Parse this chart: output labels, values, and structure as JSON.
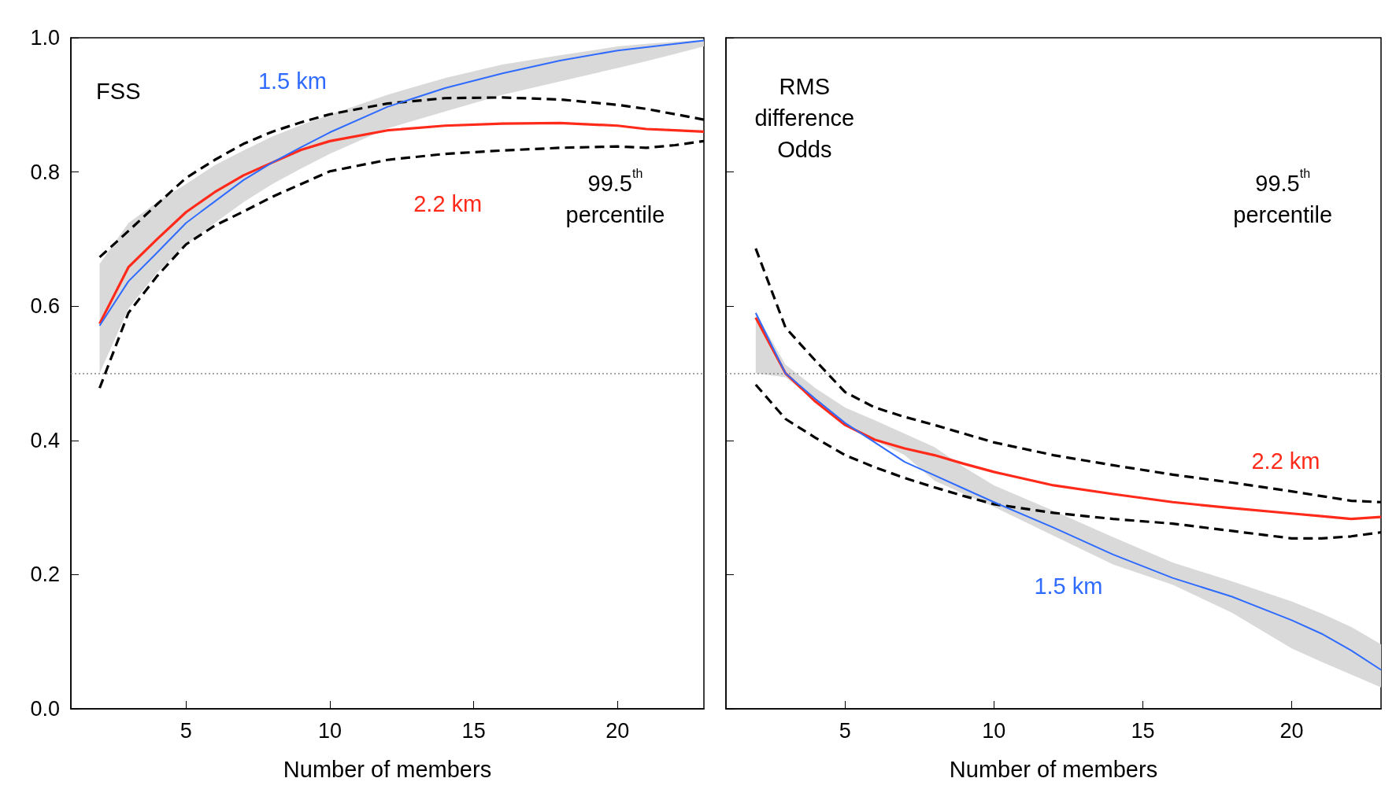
{
  "chart_data": [
    {
      "type": "line",
      "xlabel": "Number of members",
      "annotations": [
        "FSS",
        "99.5$^{th}$\npercentile"
      ],
      "xlim": [
        1,
        23
      ],
      "xticks": [
        5,
        10,
        15,
        20
      ],
      "ylim": [
        0,
        1
      ],
      "yticks": [
        {
          "value": 0,
          "label": "0.0"
        },
        {
          "value": 0.2,
          "label": "0.2"
        },
        {
          "value": 0.4,
          "label": "0.4"
        },
        {
          "value": 0.6,
          "label": "0.6"
        },
        {
          "value": 0.8,
          "label": "0.8"
        },
        {
          "value": 1,
          "label": "1.0"
        }
      ],
      "grid": false,
      "legend": false,
      "x": [
        2,
        3,
        4,
        5,
        6,
        7,
        8,
        9,
        10,
        12,
        14,
        16,
        18,
        20,
        21,
        22,
        23
      ],
      "ref_lines": [
        {
          "axis": "y",
          "value": 0.5,
          "color": "#888888",
          "line_style": "dotted"
        }
      ],
      "series": [
        {
          "name": "1.5 km",
          "color": "#2f6bff",
          "values": [
            0.571,
            0.637,
            0.68,
            0.724,
            0.756,
            0.788,
            0.814,
            0.837,
            0.859,
            0.897,
            0.925,
            0.947,
            0.966,
            0.981,
            0.986,
            0.991,
            0.996
          ],
          "lower": [
            0.5,
            0.596,
            0.65,
            0.692,
            0.724,
            0.755,
            0.782,
            0.805,
            0.827,
            0.865,
            0.89,
            0.915,
            0.935,
            0.955,
            0.965,
            0.976,
            0.987
          ],
          "upper": [
            0.663,
            0.724,
            0.755,
            0.782,
            0.81,
            0.832,
            0.853,
            0.87,
            0.885,
            0.915,
            0.94,
            0.96,
            0.974,
            0.987,
            0.991,
            0.994,
            0.997
          ]
        },
        {
          "name": "2.2 km",
          "color": "#ff2a1a",
          "values": [
            0.574,
            0.658,
            0.7,
            0.74,
            0.77,
            0.795,
            0.814,
            0.833,
            0.846,
            0.862,
            0.869,
            0.872,
            0.873,
            0.869,
            0.864,
            0.862,
            0.86
          ]
        },
        {
          "color": "#000000",
          "line_style": "dashed",
          "values": [
            0.673,
            0.712,
            0.752,
            0.791,
            0.818,
            0.842,
            0.86,
            0.874,
            0.886,
            0.902,
            0.91,
            0.911,
            0.908,
            0.9,
            0.894,
            0.886,
            0.878
          ]
        },
        {
          "color": "#000000",
          "line_style": "dashed",
          "values": [
            0.478,
            0.59,
            0.645,
            0.692,
            0.72,
            0.741,
            0.763,
            0.782,
            0.801,
            0.818,
            0.827,
            0.832,
            0.836,
            0.838,
            0.836,
            0.84,
            0.846
          ]
        }
      ]
    },
    {
      "type": "line",
      "xlabel": "Number of members",
      "annotations": [
        "RMS\ndifference\nOdds",
        "99.5$^{th}$\npercentile"
      ],
      "xlim": [
        1,
        23
      ],
      "xticks": [
        5,
        10,
        15,
        20
      ],
      "ylim": [
        0,
        1
      ],
      "yticks": [
        0,
        0.2,
        0.4,
        0.6,
        0.8,
        1
      ],
      "tick_labels": "x",
      "grid": false,
      "legend": false,
      "x": [
        2,
        3,
        4,
        5,
        6,
        7,
        8,
        9,
        10,
        12,
        14,
        16,
        18,
        20,
        21,
        22,
        23
      ],
      "ref_lines": [
        {
          "axis": "y",
          "value": 0.5,
          "color": "#888888",
          "line_style": "dotted"
        }
      ],
      "series": [
        {
          "name": "1.5 km",
          "color": "#2f6bff",
          "values": [
            0.59,
            0.5,
            0.462,
            0.426,
            0.397,
            0.368,
            0.348,
            0.328,
            0.308,
            0.27,
            0.23,
            0.195,
            0.167,
            0.132,
            0.112,
            0.087,
            0.058
          ],
          "lower": [
            0.5,
            0.494,
            0.46,
            0.423,
            0.4,
            0.378,
            0.34,
            0.32,
            0.301,
            0.258,
            0.215,
            0.185,
            0.143,
            0.09,
            0.07,
            0.051,
            0.032
          ],
          "upper": [
            0.59,
            0.513,
            0.478,
            0.449,
            0.43,
            0.41,
            0.39,
            0.36,
            0.333,
            0.295,
            0.256,
            0.218,
            0.19,
            0.16,
            0.142,
            0.122,
            0.096
          ]
        },
        {
          "name": "2.2 km",
          "color": "#ff2a1a",
          "values": [
            0.583,
            0.5,
            0.458,
            0.423,
            0.401,
            0.388,
            0.378,
            0.365,
            0.353,
            0.333,
            0.32,
            0.308,
            0.299,
            0.291,
            0.287,
            0.283,
            0.286
          ]
        },
        {
          "color": "#000000",
          "line_style": "dashed",
          "values": [
            0.686,
            0.568,
            0.519,
            0.472,
            0.449,
            0.435,
            0.423,
            0.41,
            0.397,
            0.378,
            0.363,
            0.349,
            0.337,
            0.324,
            0.317,
            0.31,
            0.308
          ]
        },
        {
          "color": "#000000",
          "line_style": "dashed",
          "values": [
            0.483,
            0.432,
            0.404,
            0.378,
            0.36,
            0.344,
            0.33,
            0.317,
            0.305,
            0.292,
            0.283,
            0.276,
            0.265,
            0.254,
            0.254,
            0.257,
            0.263
          ]
        }
      ]
    }
  ]
}
